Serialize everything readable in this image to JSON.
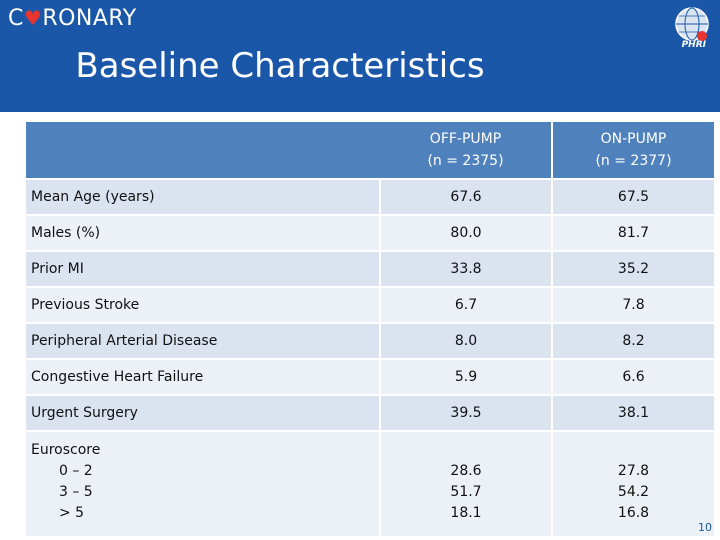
{
  "header": {
    "logo_prefix": "C",
    "logo_suffix": "RONARY",
    "title": "Baseline Characteristics",
    "org_label": "PHRI",
    "brand_color": "#1b57a8",
    "heart_color": "#e8342f"
  },
  "table": {
    "columns": [
      {
        "line1": "OFF-PUMP",
        "line2": "(n = 2375)"
      },
      {
        "line1": "ON-PUMP",
        "line2": "(n = 2377)"
      }
    ],
    "rows": [
      {
        "label": "Mean Age (years)",
        "off": "67.6",
        "on": "67.5"
      },
      {
        "label": "Males (%)",
        "off": "80.0",
        "on": "81.7"
      },
      {
        "label": "Prior MI",
        "off": "33.8",
        "on": "35.2"
      },
      {
        "label": "Previous Stroke",
        "off": "6.7",
        "on": "7.8"
      },
      {
        "label": "Peripheral Arterial Disease",
        "off": "8.0",
        "on": "8.2"
      },
      {
        "label": "Congestive Heart Failure",
        "off": "5.9",
        "on": "6.6"
      },
      {
        "label": "Urgent Surgery",
        "off": "39.5",
        "on": "38.1"
      }
    ],
    "euroscore": {
      "label": "Euroscore",
      "subs": [
        "0 – 2",
        "3 – 5",
        "> 5"
      ],
      "off": [
        "28.6",
        "51.7",
        "18.1"
      ],
      "on": [
        "27.8",
        "54.2",
        "16.8"
      ]
    },
    "header_color": "#4f81bd",
    "row_color_dark": "#dbe3f0",
    "row_color_light": "#ecf0f7"
  },
  "page_number": "10"
}
